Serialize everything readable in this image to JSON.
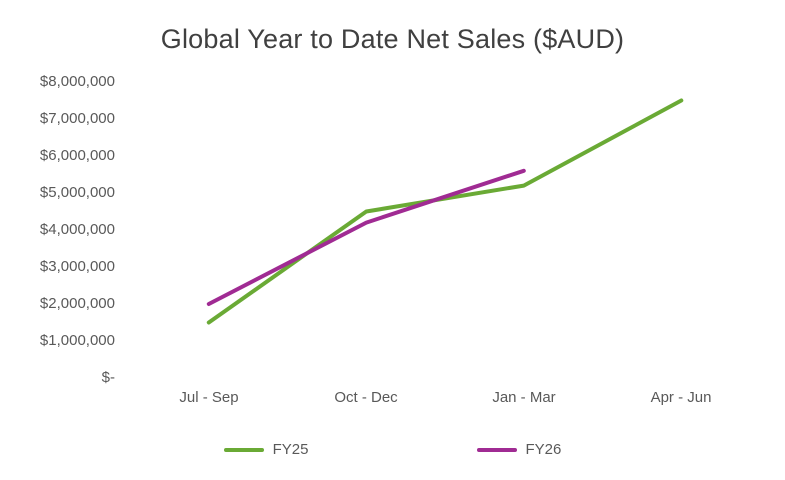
{
  "chart_data": {
    "type": "line",
    "title": "Global Year to Date Net Sales ($AUD)",
    "categories": [
      "Jul - Sep",
      "Oct - Dec",
      "Jan - Mar",
      "Apr - Jun"
    ],
    "series": [
      {
        "name": "FY25",
        "color": "#6aaa35",
        "values": [
          1500000,
          4500000,
          5200000,
          7500000
        ]
      },
      {
        "name": "FY26",
        "color": "#a02b93",
        "values": [
          2000000,
          4200000,
          5600000,
          null
        ]
      }
    ],
    "ylim": [
      0,
      8000000
    ],
    "ytick_labels": [
      "$8,000,000",
      "$7,000,000",
      "$6,000,000",
      "$5,000,000",
      "$4,000,000",
      "$3,000,000",
      "$2,000,000",
      "$1,000,000",
      "$-"
    ],
    "grid": "off",
    "legend_position": "bottom",
    "xlabel": "",
    "ylabel": ""
  }
}
